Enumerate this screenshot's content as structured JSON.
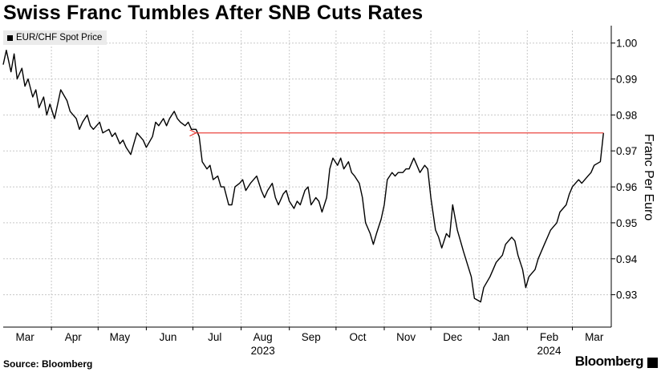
{
  "header": {
    "title": "Swiss Franc Tumbles After SNB Cuts Rates"
  },
  "footer": {
    "source": "Source: Bloomberg",
    "brand": "Bloomberg"
  },
  "colors": {
    "line": "#000000",
    "reference": "#e8322c",
    "grid": "#c8c8c8",
    "legend_bg": "#ebebeb"
  },
  "chart_data": {
    "type": "line",
    "title": "Swiss Franc Tumbles After SNB Cuts Rates",
    "ylabel": "Franc Per Euro",
    "ylim": [
      0.921,
      1.0035
    ],
    "yticks": [
      1.0,
      0.99,
      0.98,
      0.97,
      0.96,
      0.95,
      0.94,
      0.93
    ],
    "ytick_labels": [
      "1.00",
      "0.99",
      "0.98",
      "0.97",
      "0.96",
      "0.95",
      "0.94",
      "0.93"
    ],
    "y_axis_position": "right",
    "grid": true,
    "legend_position": "top-left",
    "x_range": [
      "2023-03-01",
      "2024-03-26"
    ],
    "month_ticks": [
      "2023-04-01",
      "2023-05-01",
      "2023-06-01",
      "2023-07-01",
      "2023-08-01",
      "2023-09-01",
      "2023-10-01",
      "2023-11-01",
      "2023-12-01",
      "2024-01-01",
      "2024-02-01",
      "2024-03-01"
    ],
    "month_labels": [
      {
        "label": "Mar",
        "date": "2023-03-15"
      },
      {
        "label": "Apr",
        "date": "2023-04-15"
      },
      {
        "label": "May",
        "date": "2023-05-15"
      },
      {
        "label": "Jun",
        "date": "2023-06-15"
      },
      {
        "label": "Jul",
        "date": "2023-07-15"
      },
      {
        "label": "Aug",
        "date": "2023-08-15"
      },
      {
        "label": "Sep",
        "date": "2023-09-15"
      },
      {
        "label": "Oct",
        "date": "2023-10-15"
      },
      {
        "label": "Nov",
        "date": "2023-11-15"
      },
      {
        "label": "Dec",
        "date": "2023-12-15"
      },
      {
        "label": "Jan",
        "date": "2024-01-15"
      },
      {
        "label": "Feb",
        "date": "2024-02-15"
      },
      {
        "label": "Mar",
        "date": "2024-03-15"
      }
    ],
    "year_labels": [
      {
        "label": "2023",
        "date": "2023-08-15"
      },
      {
        "label": "2024",
        "date": "2024-02-15"
      }
    ],
    "series": [
      {
        "name": "EUR/CHF Spot Price",
        "points": [
          [
            "2023-03-01",
            0.994
          ],
          [
            "2023-03-03",
            0.998
          ],
          [
            "2023-03-06",
            0.992
          ],
          [
            "2023-03-08",
            0.997
          ],
          [
            "2023-03-10",
            0.99
          ],
          [
            "2023-03-13",
            0.993
          ],
          [
            "2023-03-15",
            0.988
          ],
          [
            "2023-03-17",
            0.99
          ],
          [
            "2023-03-20",
            0.985
          ],
          [
            "2023-03-22",
            0.987
          ],
          [
            "2023-03-24",
            0.982
          ],
          [
            "2023-03-27",
            0.985
          ],
          [
            "2023-03-29",
            0.98
          ],
          [
            "2023-03-31",
            0.983
          ],
          [
            "2023-04-03",
            0.979
          ],
          [
            "2023-04-05",
            0.983
          ],
          [
            "2023-04-07",
            0.987
          ],
          [
            "2023-04-11",
            0.984
          ],
          [
            "2023-04-13",
            0.981
          ],
          [
            "2023-04-17",
            0.979
          ],
          [
            "2023-04-19",
            0.976
          ],
          [
            "2023-04-21",
            0.978
          ],
          [
            "2023-04-24",
            0.98
          ],
          [
            "2023-04-26",
            0.977
          ],
          [
            "2023-04-28",
            0.976
          ],
          [
            "2023-05-02",
            0.978
          ],
          [
            "2023-05-04",
            0.975
          ],
          [
            "2023-05-08",
            0.976
          ],
          [
            "2023-05-10",
            0.974
          ],
          [
            "2023-05-12",
            0.975
          ],
          [
            "2023-05-15",
            0.972
          ],
          [
            "2023-05-17",
            0.973
          ],
          [
            "2023-05-19",
            0.971
          ],
          [
            "2023-05-22",
            0.969
          ],
          [
            "2023-05-24",
            0.972
          ],
          [
            "2023-05-26",
            0.975
          ],
          [
            "2023-05-30",
            0.973
          ],
          [
            "2023-06-01",
            0.971
          ],
          [
            "2023-06-05",
            0.974
          ],
          [
            "2023-06-07",
            0.978
          ],
          [
            "2023-06-09",
            0.977
          ],
          [
            "2023-06-12",
            0.979
          ],
          [
            "2023-06-14",
            0.977
          ],
          [
            "2023-06-16",
            0.979
          ],
          [
            "2023-06-19",
            0.981
          ],
          [
            "2023-06-21",
            0.979
          ],
          [
            "2023-06-23",
            0.978
          ],
          [
            "2023-06-26",
            0.977
          ],
          [
            "2023-06-28",
            0.978
          ],
          [
            "2023-06-30",
            0.976
          ],
          [
            "2023-07-03",
            0.976
          ],
          [
            "2023-07-05",
            0.974
          ],
          [
            "2023-07-07",
            0.967
          ],
          [
            "2023-07-10",
            0.965
          ],
          [
            "2023-07-12",
            0.966
          ],
          [
            "2023-07-14",
            0.962
          ],
          [
            "2023-07-17",
            0.963
          ],
          [
            "2023-07-19",
            0.96
          ],
          [
            "2023-07-21",
            0.96
          ],
          [
            "2023-07-24",
            0.955
          ],
          [
            "2023-07-26",
            0.955
          ],
          [
            "2023-07-28",
            0.96
          ],
          [
            "2023-07-31",
            0.961
          ],
          [
            "2023-08-02",
            0.962
          ],
          [
            "2023-08-04",
            0.959
          ],
          [
            "2023-08-07",
            0.961
          ],
          [
            "2023-08-09",
            0.962
          ],
          [
            "2023-08-11",
            0.963
          ],
          [
            "2023-08-14",
            0.959
          ],
          [
            "2023-08-16",
            0.957
          ],
          [
            "2023-08-18",
            0.959
          ],
          [
            "2023-08-21",
            0.961
          ],
          [
            "2023-08-23",
            0.957
          ],
          [
            "2023-08-25",
            0.955
          ],
          [
            "2023-08-28",
            0.958
          ],
          [
            "2023-08-30",
            0.959
          ],
          [
            "2023-09-01",
            0.956
          ],
          [
            "2023-09-04",
            0.954
          ],
          [
            "2023-09-06",
            0.956
          ],
          [
            "2023-09-08",
            0.955
          ],
          [
            "2023-09-11",
            0.959
          ],
          [
            "2023-09-13",
            0.96
          ],
          [
            "2023-09-15",
            0.955
          ],
          [
            "2023-09-18",
            0.957
          ],
          [
            "2023-09-20",
            0.956
          ],
          [
            "2023-09-22",
            0.953
          ],
          [
            "2023-09-25",
            0.957
          ],
          [
            "2023-09-27",
            0.965
          ],
          [
            "2023-09-29",
            0.968
          ],
          [
            "2023-10-02",
            0.966
          ],
          [
            "2023-10-04",
            0.968
          ],
          [
            "2023-10-06",
            0.965
          ],
          [
            "2023-10-09",
            0.967
          ],
          [
            "2023-10-11",
            0.964
          ],
          [
            "2023-10-13",
            0.963
          ],
          [
            "2023-10-16",
            0.961
          ],
          [
            "2023-10-18",
            0.957
          ],
          [
            "2023-10-20",
            0.95
          ],
          [
            "2023-10-23",
            0.947
          ],
          [
            "2023-10-25",
            0.944
          ],
          [
            "2023-10-27",
            0.947
          ],
          [
            "2023-10-30",
            0.951
          ],
          [
            "2023-11-01",
            0.955
          ],
          [
            "2023-11-03",
            0.962
          ],
          [
            "2023-11-06",
            0.964
          ],
          [
            "2023-11-08",
            0.963
          ],
          [
            "2023-11-10",
            0.964
          ],
          [
            "2023-11-13",
            0.964
          ],
          [
            "2023-11-15",
            0.965
          ],
          [
            "2023-11-17",
            0.965
          ],
          [
            "2023-11-20",
            0.968
          ],
          [
            "2023-11-22",
            0.966
          ],
          [
            "2023-11-24",
            0.964
          ],
          [
            "2023-11-27",
            0.966
          ],
          [
            "2023-11-29",
            0.965
          ],
          [
            "2023-12-01",
            0.957
          ],
          [
            "2023-12-04",
            0.948
          ],
          [
            "2023-12-06",
            0.946
          ],
          [
            "2023-12-08",
            0.943
          ],
          [
            "2023-12-11",
            0.947
          ],
          [
            "2023-12-13",
            0.946
          ],
          [
            "2023-12-15",
            0.955
          ],
          [
            "2023-12-18",
            0.948
          ],
          [
            "2023-12-20",
            0.945
          ],
          [
            "2023-12-22",
            0.942
          ],
          [
            "2023-12-27",
            0.935
          ],
          [
            "2023-12-29",
            0.929
          ],
          [
            "2024-01-02",
            0.928
          ],
          [
            "2024-01-04",
            0.932
          ],
          [
            "2024-01-08",
            0.935
          ],
          [
            "2024-01-10",
            0.937
          ],
          [
            "2024-01-12",
            0.939
          ],
          [
            "2024-01-16",
            0.941
          ],
          [
            "2024-01-18",
            0.944
          ],
          [
            "2024-01-22",
            0.946
          ],
          [
            "2024-01-24",
            0.945
          ],
          [
            "2024-01-26",
            0.941
          ],
          [
            "2024-01-29",
            0.937
          ],
          [
            "2024-01-31",
            0.932
          ],
          [
            "2024-02-02",
            0.935
          ],
          [
            "2024-02-06",
            0.937
          ],
          [
            "2024-02-08",
            0.94
          ],
          [
            "2024-02-12",
            0.944
          ],
          [
            "2024-02-14",
            0.946
          ],
          [
            "2024-02-16",
            0.948
          ],
          [
            "2024-02-20",
            0.95
          ],
          [
            "2024-02-22",
            0.953
          ],
          [
            "2024-02-26",
            0.955
          ],
          [
            "2024-02-28",
            0.958
          ],
          [
            "2024-03-01",
            0.96
          ],
          [
            "2024-03-05",
            0.962
          ],
          [
            "2024-03-07",
            0.961
          ],
          [
            "2024-03-11",
            0.963
          ],
          [
            "2024-03-13",
            0.964
          ],
          [
            "2024-03-15",
            0.966
          ],
          [
            "2024-03-19",
            0.967
          ],
          [
            "2024-03-21",
            0.975
          ]
        ]
      }
    ],
    "annotations": [
      {
        "type": "arrow",
        "color": "#e8322c",
        "from": [
          "2024-03-21",
          0.975
        ],
        "to": [
          "2023-07-03",
          0.975
        ]
      }
    ]
  }
}
